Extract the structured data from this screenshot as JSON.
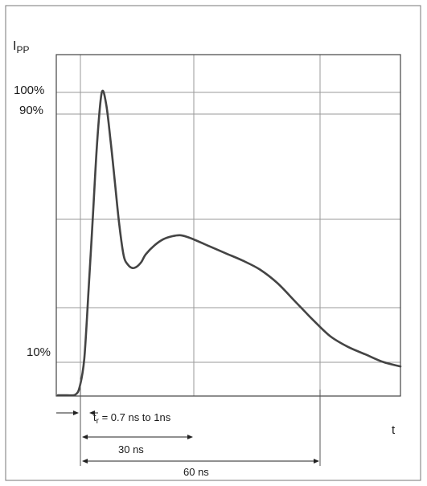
{
  "chart_data": {
    "type": "line",
    "title": "",
    "ylabel": "IPP",
    "xlabel": "t",
    "y_ticks": [
      "100%",
      "90%",
      "10%"
    ],
    "grid": true,
    "series": [
      {
        "points": [
          [
            0,
            0
          ],
          [
            2,
            0
          ],
          [
            4,
            0.2
          ],
          [
            5,
            3
          ],
          [
            6,
            12
          ],
          [
            7,
            35
          ],
          [
            8,
            60
          ],
          [
            9,
            85
          ],
          [
            10,
            100
          ],
          [
            11,
            96
          ],
          [
            12,
            84
          ],
          [
            13,
            70
          ],
          [
            14,
            56
          ],
          [
            15,
            46
          ],
          [
            16,
            43
          ],
          [
            17,
            42
          ],
          [
            18,
            42.5
          ],
          [
            19,
            44
          ],
          [
            20,
            46.5
          ],
          [
            22,
            49.5
          ],
          [
            24,
            51.5
          ],
          [
            26,
            52.5
          ],
          [
            28,
            52.8
          ],
          [
            30,
            52
          ],
          [
            34,
            49.5
          ],
          [
            38,
            47
          ],
          [
            42,
            44.5
          ],
          [
            46,
            41.5
          ],
          [
            50,
            37
          ],
          [
            54,
            31
          ],
          [
            58,
            25
          ],
          [
            62,
            19.5
          ],
          [
            66,
            16
          ],
          [
            70,
            13.5
          ],
          [
            74,
            11
          ],
          [
            78,
            9.5
          ]
        ]
      }
    ],
    "annotations": {
      "rise_time": "t",
      "rise_sub": "r",
      "rise_text": " = 0.7 ns to 1ns",
      "t30": "30 ns",
      "t60": "60 ns"
    }
  }
}
